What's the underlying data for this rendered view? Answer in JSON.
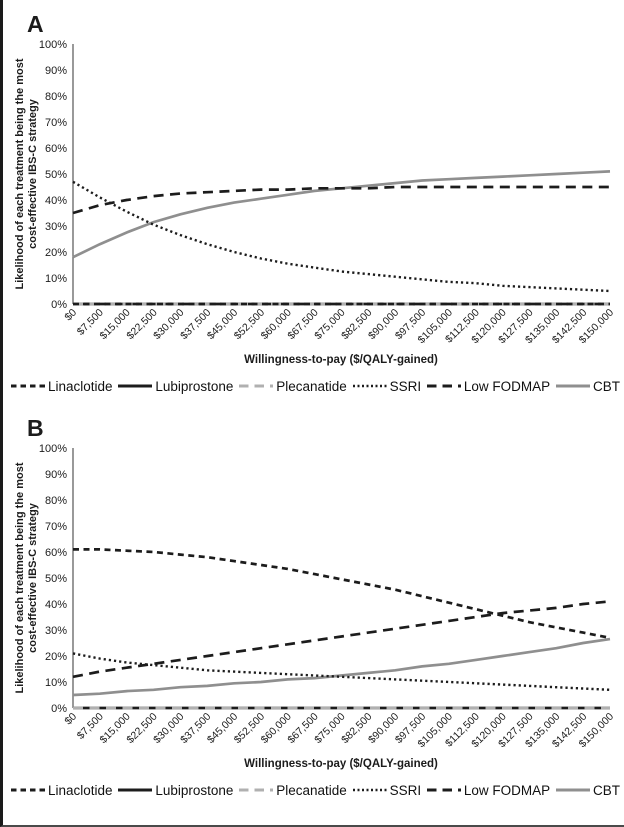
{
  "figure": {
    "background": "#ffffff",
    "accent_black": "#1c1c1c",
    "accent_gray": "#8f8f8f",
    "accent_light_gray": "#b0b0b0"
  },
  "legend": {
    "items": [
      {
        "label": "Linaclotide",
        "color": "#1c1c1c",
        "dash": "short-dash",
        "icon": "short-dashed-line-swatch"
      },
      {
        "label": "Lubiprostone",
        "color": "#1c1c1c",
        "dash": "solid",
        "icon": "solid-black-line-swatch"
      },
      {
        "label": "Plecanatide",
        "color": "#b0b0b0",
        "dash": "long-dash",
        "icon": "gray-dashed-line-swatch"
      },
      {
        "label": "SSRI",
        "color": "#1c1c1c",
        "dash": "dot",
        "icon": "dotted-line-swatch"
      },
      {
        "label": "Low FODMAP",
        "color": "#1c1c1c",
        "dash": "long-dash",
        "icon": "long-dashed-line-swatch"
      },
      {
        "label": "CBT",
        "color": "#8f8f8f",
        "dash": "solid",
        "icon": "solid-gray-line-swatch"
      }
    ]
  },
  "chart_data": [
    {
      "type": "line",
      "panel_label": "A",
      "xlabel": "Willingness-to-pay ($/QALY-gained)",
      "ylabel": "Likelihood of each treatment being the most cost-effective IBS-C strategy",
      "ylabel_line1": "Likelihood of each treatment being the most",
      "ylabel_line2": "cost-effective IBS-C strategy",
      "ylim": [
        0,
        100
      ],
      "grid": false,
      "legend_position": "bottom",
      "x": [
        0,
        7500,
        15000,
        22500,
        30000,
        37500,
        45000,
        52500,
        60000,
        67500,
        75000,
        82500,
        90000,
        97500,
        105000,
        112500,
        120000,
        127500,
        135000,
        142500,
        150000
      ],
      "x_tick_labels": [
        "$0",
        "$7,500",
        "$15,000",
        "$22,500",
        "$30,000",
        "$37,500",
        "$45,000",
        "$52,500",
        "$60,000",
        "$67,500",
        "$75,000",
        "$82,500",
        "$90,000",
        "$97,500",
        "$105,000",
        "$112,500",
        "$120,000",
        "$127,500",
        "$135,000",
        "$142,500",
        "$150,000"
      ],
      "y_tick_labels": [
        "0%",
        "10%",
        "20%",
        "30%",
        "40%",
        "50%",
        "60%",
        "70%",
        "80%",
        "90%",
        "100%"
      ],
      "series": [
        {
          "name": "Lubiprostone",
          "color": "#1c1c1c",
          "dash": "solid",
          "values": [
            0,
            0,
            0,
            0,
            0,
            0,
            0,
            0,
            0,
            0,
            0,
            0,
            0,
            0,
            0,
            0,
            0,
            0,
            0,
            0,
            0
          ]
        },
        {
          "name": "Plecanatide",
          "color": "#b0b0b0",
          "dash": "long-dash",
          "values": [
            0,
            0,
            0,
            0,
            0,
            0,
            0,
            0,
            0,
            0,
            0,
            0,
            0,
            0,
            0,
            0,
            0,
            0,
            0,
            0,
            0
          ]
        },
        {
          "name": "CBT",
          "color": "#8f8f8f",
          "dash": "solid",
          "values": [
            18,
            23,
            27.5,
            31.5,
            34.5,
            37,
            39,
            40.5,
            42,
            43.5,
            44.5,
            45.5,
            46.5,
            47.5,
            48,
            48.5,
            49,
            49.5,
            50,
            50.5,
            51
          ]
        },
        {
          "name": "SSRI",
          "color": "#1c1c1c",
          "dash": "dot",
          "values": [
            47,
            41,
            35.5,
            30.5,
            26.5,
            23,
            20,
            17.5,
            15.5,
            14,
            12.5,
            11.5,
            10.5,
            9.5,
            8.5,
            8,
            7,
            6.5,
            6,
            5.5,
            5
          ]
        },
        {
          "name": "Low FODMAP",
          "color": "#1c1c1c",
          "dash": "long-dash",
          "values": [
            35,
            38,
            40,
            41.5,
            42.5,
            43,
            43.5,
            44,
            44,
            44.5,
            44.5,
            44.5,
            45,
            45,
            45,
            45,
            45,
            45,
            45,
            45,
            45
          ]
        },
        {
          "name": "Linaclotide",
          "color": "#1c1c1c",
          "dash": "short-dash",
          "values": [
            0,
            0,
            0,
            0,
            0,
            0,
            0,
            0,
            0,
            0,
            0,
            0,
            0,
            0,
            0,
            0,
            0,
            0,
            0,
            0,
            0
          ]
        }
      ]
    },
    {
      "type": "line",
      "panel_label": "B",
      "xlabel": "Willingness-to-pay ($/QALY-gained)",
      "ylabel": "Likelihood of each treatment being the most cost-effective IBS-C strategy",
      "ylabel_line1": "Likelihood of each treatment being the most",
      "ylabel_line2": "cost-effective IBS-C strategy",
      "ylim": [
        0,
        100
      ],
      "grid": false,
      "legend_position": "bottom",
      "x": [
        0,
        7500,
        15000,
        22500,
        30000,
        37500,
        45000,
        52500,
        60000,
        67500,
        75000,
        82500,
        90000,
        97500,
        105000,
        112500,
        120000,
        127500,
        135000,
        142500,
        150000
      ],
      "x_tick_labels": [
        "$0",
        "$7,500",
        "$15,000",
        "$22,500",
        "$30,000",
        "$37,500",
        "$45,000",
        "$52,500",
        "$60,000",
        "$67,500",
        "$75,000",
        "$82,500",
        "$90,000",
        "$97,500",
        "$105,000",
        "$112,500",
        "$120,000",
        "$127,500",
        "$135,000",
        "$142,500",
        "$150,000"
      ],
      "y_tick_labels": [
        "0%",
        "10%",
        "20%",
        "30%",
        "40%",
        "50%",
        "60%",
        "70%",
        "80%",
        "90%",
        "100%"
      ],
      "series": [
        {
          "name": "Lubiprostone",
          "color": "#1c1c1c",
          "dash": "solid",
          "values": [
            0,
            0,
            0,
            0,
            0,
            0,
            0,
            0,
            0,
            0,
            0,
            0,
            0,
            0,
            0,
            0,
            0,
            0,
            0,
            0,
            0
          ]
        },
        {
          "name": "Plecanatide",
          "color": "#b0b0b0",
          "dash": "long-dash",
          "values": [
            0,
            0,
            0,
            0,
            0,
            0,
            0,
            0,
            0,
            0,
            0,
            0,
            0,
            0,
            0,
            0,
            0,
            0,
            0,
            0,
            0
          ]
        },
        {
          "name": "CBT",
          "color": "#8f8f8f",
          "dash": "solid",
          "values": [
            5,
            5.5,
            6.5,
            7,
            8,
            8.5,
            9.5,
            10,
            11,
            11.5,
            12.5,
            13.5,
            14.5,
            16,
            17,
            18.5,
            20,
            21.5,
            23,
            25,
            26.5
          ]
        },
        {
          "name": "SSRI",
          "color": "#1c1c1c",
          "dash": "dot",
          "values": [
            21,
            19,
            17.5,
            16.5,
            15.5,
            14.5,
            14,
            13.5,
            13,
            12.5,
            12,
            11.5,
            11,
            10.5,
            10,
            9.5,
            9,
            8.5,
            8,
            7.5,
            7
          ]
        },
        {
          "name": "Low FODMAP",
          "color": "#1c1c1c",
          "dash": "long-dash",
          "values": [
            12,
            14,
            15.5,
            17,
            18.5,
            20,
            21.5,
            23,
            24.5,
            26,
            27.5,
            29,
            30.5,
            32,
            33.5,
            35,
            36.5,
            37.5,
            38.5,
            40,
            41
          ]
        },
        {
          "name": "Linaclotide",
          "color": "#1c1c1c",
          "dash": "short-dash",
          "values": [
            61,
            61,
            60.5,
            60,
            59,
            58,
            56.5,
            55,
            53.5,
            51.5,
            49.5,
            47.5,
            45.5,
            43,
            40.5,
            38,
            35.5,
            33,
            31,
            29,
            27
          ]
        }
      ]
    }
  ]
}
